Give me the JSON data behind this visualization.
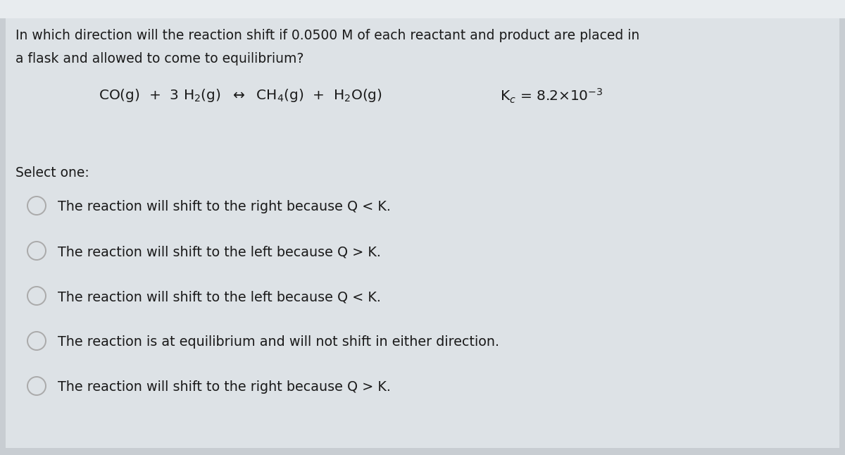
{
  "background_color": "#c8cdd2",
  "content_bg": "#dde1e5",
  "top_strip_color": "#e8eaec",
  "question_text_line1": "In which direction will the reaction shift if 0.0500 M of each reactant and product are placed in",
  "question_text_line2": "a flask and allowed to come to equilibrium?",
  "reaction_str": "CO(g)  +  3 H$_2$(g)  $\\leftrightarrow$  CH$_4$(g)  +  H$_2$O(g)",
  "kc_str": "K$_c$ = 8.2$\\times$10$^{-3}$",
  "select_one": "Select one:",
  "options": [
    "The reaction will shift to the right because Q < K.",
    "The reaction will shift to the left because Q > K.",
    "The reaction will shift to the left because Q < K.",
    "The reaction is at equilibrium and will not shift in either direction.",
    "The reaction will shift to the right because Q > K."
  ],
  "text_color": "#1a1a1a",
  "circle_color": "#aaaaaa",
  "font_size_question": 13.5,
  "font_size_options": 13.8,
  "font_size_reaction": 14.5,
  "font_size_select": 13.5,
  "font_size_kc": 14.5
}
